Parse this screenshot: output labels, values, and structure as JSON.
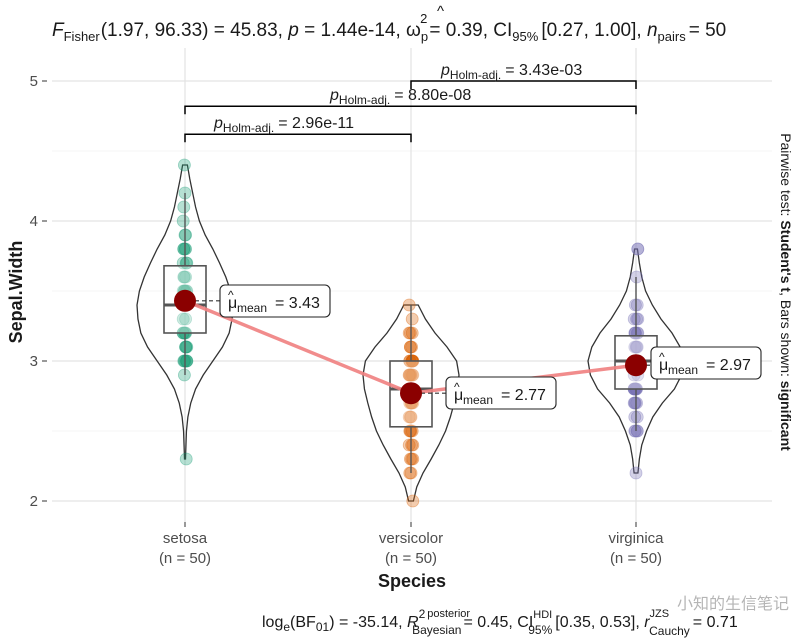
{
  "chart_data": {
    "type": "violin-box-scatter",
    "xlabel": "Species",
    "ylabel": "Sepal.Width",
    "ylim": [
      1.85,
      5.25
    ],
    "yticks": [
      2,
      3,
      4,
      5
    ],
    "grid": true,
    "categories": [
      {
        "name": "setosa",
        "n_label": "(n = 50)",
        "color": "#1B9E77",
        "mean": 3.43,
        "mean_label": "= 3.43",
        "q1": 3.2,
        "median": 3.4,
        "q3": 3.68,
        "whisker_low": 2.9,
        "whisker_high": 4.2,
        "min": 2.3,
        "max": 4.4,
        "points": [
          3.5,
          3.0,
          3.2,
          3.1,
          3.6,
          3.9,
          3.4,
          3.4,
          2.9,
          3.1,
          3.7,
          3.4,
          3.0,
          3.0,
          4.0,
          4.4,
          3.9,
          3.5,
          3.8,
          3.8,
          3.4,
          3.7,
          3.6,
          3.3,
          3.4,
          3.0,
          3.4,
          3.5,
          3.4,
          3.2,
          3.1,
          3.4,
          4.1,
          4.2,
          3.1,
          3.2,
          3.5,
          3.6,
          3.0,
          3.4,
          3.5,
          2.3,
          3.2,
          3.5,
          3.8,
          3.0,
          3.8,
          3.2,
          3.7,
          3.3
        ],
        "violin": [
          [
            2.3,
            0.01
          ],
          [
            2.4,
            0.02
          ],
          [
            2.5,
            0.03
          ],
          [
            2.6,
            0.06
          ],
          [
            2.7,
            0.12
          ],
          [
            2.8,
            0.22
          ],
          [
            2.9,
            0.38
          ],
          [
            3.0,
            0.58
          ],
          [
            3.1,
            0.78
          ],
          [
            3.2,
            0.92
          ],
          [
            3.3,
            0.98
          ],
          [
            3.4,
            1.0
          ],
          [
            3.5,
            0.95
          ],
          [
            3.6,
            0.85
          ],
          [
            3.7,
            0.72
          ],
          [
            3.8,
            0.58
          ],
          [
            3.9,
            0.42
          ],
          [
            4.0,
            0.3
          ],
          [
            4.1,
            0.22
          ],
          [
            4.2,
            0.16
          ],
          [
            4.3,
            0.1
          ],
          [
            4.4,
            0.05
          ]
        ]
      },
      {
        "name": "versicolor",
        "n_label": "(n = 50)",
        "color": "#D95F02",
        "mean": 2.77,
        "mean_label": "= 2.77",
        "q1": 2.53,
        "median": 2.8,
        "q3": 3.0,
        "whisker_low": 2.2,
        "whisker_high": 3.4,
        "min": 2.0,
        "max": 3.4,
        "points": [
          3.2,
          3.2,
          3.1,
          2.3,
          2.8,
          2.8,
          3.3,
          2.4,
          2.9,
          2.7,
          2.0,
          3.0,
          2.2,
          2.9,
          2.9,
          3.1,
          3.0,
          2.7,
          2.2,
          2.5,
          3.2,
          2.8,
          2.5,
          2.8,
          2.9,
          3.0,
          2.8,
          3.0,
          2.9,
          2.6,
          2.4,
          2.4,
          2.7,
          2.7,
          3.0,
          3.4,
          3.1,
          2.3,
          3.0,
          2.5,
          2.6,
          3.0,
          2.6,
          2.3,
          2.7,
          3.0,
          2.9,
          2.9,
          2.5,
          2.8
        ],
        "violin": [
          [
            2.0,
            0.05
          ],
          [
            2.1,
            0.12
          ],
          [
            2.2,
            0.25
          ],
          [
            2.3,
            0.42
          ],
          [
            2.4,
            0.58
          ],
          [
            2.5,
            0.72
          ],
          [
            2.6,
            0.82
          ],
          [
            2.7,
            0.9
          ],
          [
            2.8,
            0.97
          ],
          [
            2.9,
            1.0
          ],
          [
            3.0,
            0.95
          ],
          [
            3.1,
            0.75
          ],
          [
            3.2,
            0.5
          ],
          [
            3.3,
            0.3
          ],
          [
            3.4,
            0.15
          ]
        ]
      },
      {
        "name": "virginica",
        "n_label": "(n = 50)",
        "color": "#7570B3",
        "mean": 2.97,
        "mean_label": "= 2.97",
        "q1": 2.8,
        "median": 3.0,
        "q3": 3.18,
        "whisker_low": 2.5,
        "whisker_high": 3.6,
        "min": 2.2,
        "max": 3.8,
        "points": [
          3.3,
          2.7,
          3.0,
          2.9,
          3.0,
          3.0,
          2.5,
          2.9,
          2.5,
          3.6,
          3.2,
          2.7,
          3.0,
          2.5,
          2.8,
          3.2,
          3.0,
          3.8,
          2.6,
          2.2,
          3.2,
          2.8,
          2.8,
          2.7,
          3.3,
          3.2,
          2.8,
          3.0,
          2.8,
          3.0,
          2.8,
          3.8,
          2.8,
          2.8,
          2.6,
          3.0,
          3.4,
          3.1,
          3.0,
          3.1,
          3.1,
          3.1,
          2.7,
          3.2,
          3.3,
          3.0,
          2.5,
          3.0,
          3.4,
          3.0
        ],
        "violin": [
          [
            2.2,
            0.04
          ],
          [
            2.3,
            0.07
          ],
          [
            2.4,
            0.12
          ],
          [
            2.5,
            0.22
          ],
          [
            2.6,
            0.35
          ],
          [
            2.7,
            0.55
          ],
          [
            2.8,
            0.8
          ],
          [
            2.9,
            0.95
          ],
          [
            3.0,
            1.0
          ],
          [
            3.1,
            0.92
          ],
          [
            3.2,
            0.75
          ],
          [
            3.3,
            0.52
          ],
          [
            3.4,
            0.34
          ],
          [
            3.5,
            0.2
          ],
          [
            3.6,
            0.12
          ],
          [
            3.7,
            0.07
          ],
          [
            3.8,
            0.03
          ]
        ]
      }
    ],
    "mean_line_color": "#F08080",
    "mean_point_color": "#8B0000",
    "brackets": [
      {
        "from": 0,
        "to": 1,
        "y": 4.62,
        "label_p": "p",
        "label_sub": "Holm-adj.",
        "label_val": "= 2.96e-11"
      },
      {
        "from": 0,
        "to": 2,
        "y": 4.82,
        "label_p": "p",
        "label_sub": "Holm-adj.",
        "label_val": "= 8.80e-08"
      },
      {
        "from": 1,
        "to": 2,
        "y": 5.0,
        "label_p": "p",
        "label_sub": "Holm-adj.",
        "label_val": "= 3.43e-03"
      }
    ],
    "subtitle_parts": {
      "F": "F",
      "F_sub": "Fisher",
      "df": "(1.97, 96.33) = 45.83,",
      "p": "p",
      "p_val": "= 1.44e-14,",
      "omega": "ω",
      "omega_sub": "p",
      "omega_sup": "2",
      "omega_val": "= 0.39, CI",
      "ci_sub": "95%",
      "ci_val": "[0.27, 1.00],",
      "n": "n",
      "n_sub": "pairs",
      "n_val": "= 50"
    },
    "caption_parts": {
      "log": "log",
      "log_sub": "e",
      "bf": "(BF",
      "bf_sub": "01",
      "bf_val": ") = -35.14,",
      "R": "R",
      "R_sup": "2",
      "R_sup2": "posterior",
      "R_sub": "Bayesian",
      "R_val": "= 0.45, CI",
      "ci_sup": "HDI",
      "ci_sub": "95%",
      "ci_val": "[0.35, 0.53],",
      "r": "r",
      "r_sup": "JZS",
      "r_sub": "Cauchy",
      "r_val": "= 0.71"
    },
    "right_label_parts": {
      "pre": "Pairwise test: ",
      "bold1": "Student's t",
      "mid": ", Bars shown: ",
      "bold2": "significant"
    },
    "mean_symbol": "μ",
    "mean_symbol_sub": "mean"
  },
  "watermark": "小知的生信笔记"
}
